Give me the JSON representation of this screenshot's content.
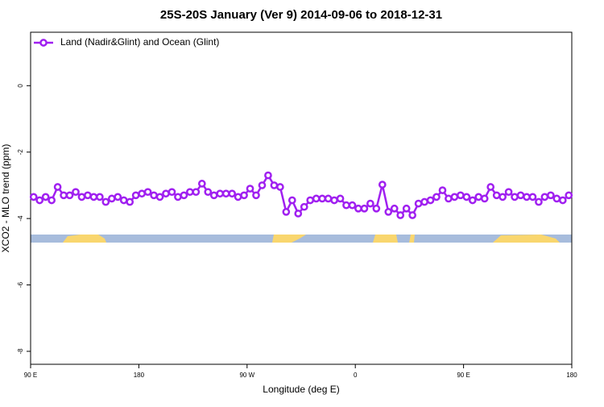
{
  "chart_data": {
    "type": "line",
    "title": "25S-20S January (Ver 9)   2014-09-06 to 2018-12-31",
    "x_label": "Longitude (deg E)",
    "y_label": "XCO2 - MLO trend (ppm)",
    "xlim": [
      90,
      540
    ],
    "ylim": [
      -8.39,
      1.61
    ],
    "xticks": [
      {
        "value": 90,
        "label": "90 E"
      },
      180,
      {
        "value": 270,
        "label": "90 W"
      },
      {
        "value": 360,
        "label": "0"
      },
      {
        "value": 450,
        "label": "90 E"
      },
      {
        "value": 540,
        "label": "180"
      }
    ],
    "yticks": [
      0,
      -2,
      -4,
      -6,
      -8
    ],
    "legend": "top-left",
    "x": [
      92.5,
      97.5,
      102.5,
      107.5,
      112.5,
      117.5,
      122.5,
      127.5,
      132.5,
      137.5,
      142.5,
      147.5,
      152.5,
      157.5,
      162.5,
      167.5,
      172.5,
      177.5,
      182.5,
      187.5,
      192.5,
      197.5,
      202.5,
      207.5,
      212.5,
      217.5,
      222.5,
      227.5,
      232.5,
      237.5,
      242.5,
      247.5,
      252.5,
      257.5,
      262.5,
      267.5,
      272.5,
      277.5,
      282.5,
      287.5,
      292.5,
      297.5,
      302.5,
      307.5,
      312.5,
      317.5,
      322.5,
      327.5,
      332.5,
      337.5,
      342.5,
      347.5,
      352.5,
      357.5,
      362.5,
      367.5,
      372.5,
      377.5,
      382.5,
      387.5,
      392.5,
      397.5,
      402.5,
      407.5,
      412.5,
      417.5,
      422.5,
      427.5,
      432.5,
      437.5,
      442.5,
      447.5,
      452.5,
      457.5,
      462.5,
      467.5,
      472.5,
      477.5,
      482.5,
      487.5,
      492.5,
      497.5,
      502.5,
      507.5,
      512.5,
      517.5,
      522.5,
      527.5,
      532.5,
      537.5
    ],
    "series": [
      {
        "name": "Land (Nadir&Glint) and Ocean (Glint)",
        "color": "#a020f0",
        "values": [
          -3.35,
          -3.45,
          -3.35,
          -3.45,
          -3.05,
          -3.3,
          -3.3,
          -3.2,
          -3.35,
          -3.3,
          -3.35,
          -3.35,
          -3.5,
          -3.4,
          -3.35,
          -3.45,
          -3.5,
          -3.3,
          -3.25,
          -3.2,
          -3.3,
          -3.35,
          -3.25,
          -3.2,
          -3.35,
          -3.3,
          -3.2,
          -3.2,
          -2.95,
          -3.2,
          -3.3,
          -3.25,
          -3.25,
          -3.25,
          -3.35,
          -3.3,
          -3.1,
          -3.3,
          -3.0,
          -2.7,
          -3.0,
          -3.05,
          -3.8,
          -3.45,
          -3.85,
          -3.65,
          -3.45,
          -3.4,
          -3.4,
          -3.4,
          -3.45,
          -3.4,
          -3.6,
          -3.6,
          -3.7,
          -3.7,
          -3.55,
          -3.7,
          -2.98,
          -3.8,
          -3.7,
          -3.9,
          -3.7,
          -3.9,
          -3.55,
          -3.5,
          -3.45,
          -3.35,
          -3.15,
          -3.4,
          -3.35,
          -3.3,
          -3.35,
          -3.45,
          -3.35,
          -3.4,
          -3.05,
          -3.3,
          -3.35,
          -3.2,
          -3.35,
          -3.3,
          -3.35,
          -3.35,
          -3.5,
          -3.35,
          -3.3,
          -3.4,
          -3.45,
          -3.3
        ]
      }
    ]
  }
}
